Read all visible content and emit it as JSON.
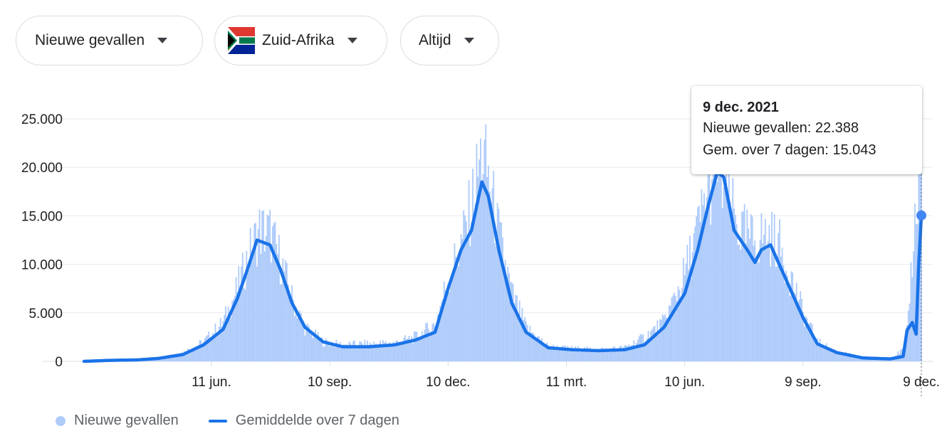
{
  "filters": {
    "metric": {
      "label": "Nieuwe gevallen"
    },
    "country": {
      "label": "Zuid-Afrika",
      "flag_icon": "south-africa-flag-icon"
    },
    "period": {
      "label": "Altijd"
    }
  },
  "tooltip": {
    "date": "9 dec. 2021",
    "cases_line": "Nieuwe gevallen: 22.388",
    "avg_line": "Gem. over 7 dagen: 15.043"
  },
  "legend": {
    "cases": "Nieuwe gevallen",
    "average": "Gemiddelde over 7 dagen"
  },
  "colors": {
    "bars": "#aecbfa",
    "line": "#1a73e8",
    "grid": "#e8eaed",
    "text": "#202124"
  },
  "chart_data": {
    "type": "bar",
    "x_start": "2020-03-05",
    "x_end": "2021-12-09",
    "ylim": [
      0,
      25000
    ],
    "y_ticks": [
      0,
      5000,
      10000,
      15000,
      20000,
      25000
    ],
    "y_tick_labels": [
      "0",
      "5.000",
      "10.000",
      "15.000",
      "20.000",
      "25.000"
    ],
    "x_ticks": [
      {
        "date": "2020-06-11",
        "label": "11 jun."
      },
      {
        "date": "2020-09-10",
        "label": "10 sep."
      },
      {
        "date": "2020-12-10",
        "label": "10 dec."
      },
      {
        "date": "2021-03-11",
        "label": "11 mrt."
      },
      {
        "date": "2021-06-10",
        "label": "10 jun."
      },
      {
        "date": "2021-09-09",
        "label": "9 sep."
      },
      {
        "date": "2021-12-09",
        "label": "9 dec."
      }
    ],
    "series": [
      {
        "name": "Nieuwe gevallen",
        "style": "bar",
        "points": [
          [
            "2020-03-05",
            0
          ],
          [
            "2020-03-25",
            150
          ],
          [
            "2020-04-15",
            150
          ],
          [
            "2020-05-01",
            300
          ],
          [
            "2020-05-20",
            900
          ],
          [
            "2020-06-05",
            2000
          ],
          [
            "2020-06-20",
            4000
          ],
          [
            "2020-07-01",
            7500
          ],
          [
            "2020-07-10",
            11000
          ],
          [
            "2020-07-18",
            13500
          ],
          [
            "2020-07-26",
            13200
          ],
          [
            "2020-08-03",
            10500
          ],
          [
            "2020-08-12",
            6500
          ],
          [
            "2020-08-22",
            3500
          ],
          [
            "2020-09-05",
            2000
          ],
          [
            "2020-09-20",
            1700
          ],
          [
            "2020-10-10",
            1800
          ],
          [
            "2020-10-30",
            1900
          ],
          [
            "2020-11-15",
            2500
          ],
          [
            "2020-11-30",
            3800
          ],
          [
            "2020-12-10",
            8500
          ],
          [
            "2020-12-20",
            12000
          ],
          [
            "2020-12-28",
            16000
          ],
          [
            "2021-01-05",
            21500
          ],
          [
            "2021-01-10",
            19000
          ],
          [
            "2021-01-18",
            13000
          ],
          [
            "2021-01-28",
            7000
          ],
          [
            "2021-02-08",
            3500
          ],
          [
            "2021-02-25",
            1500
          ],
          [
            "2021-03-15",
            1300
          ],
          [
            "2021-04-05",
            1200
          ],
          [
            "2021-04-25",
            1400
          ],
          [
            "2021-05-10",
            2500
          ],
          [
            "2021-05-25",
            4000
          ],
          [
            "2021-06-10",
            9000
          ],
          [
            "2021-06-20",
            13500
          ],
          [
            "2021-06-28",
            17500
          ],
          [
            "2021-07-05",
            20500
          ],
          [
            "2021-07-12",
            17000
          ],
          [
            "2021-07-22",
            13500
          ],
          [
            "2021-08-01",
            12500
          ],
          [
            "2021-08-10",
            13000
          ],
          [
            "2021-08-20",
            12500
          ],
          [
            "2021-08-30",
            9000
          ],
          [
            "2021-09-09",
            5000
          ],
          [
            "2021-09-20",
            2000
          ],
          [
            "2021-10-05",
            1000
          ],
          [
            "2021-10-25",
            400
          ],
          [
            "2021-11-15",
            300
          ],
          [
            "2021-11-25",
            1200
          ],
          [
            "2021-11-28",
            3000
          ],
          [
            "2021-12-02",
            11000
          ],
          [
            "2021-12-09",
            22388
          ]
        ]
      },
      {
        "name": "Gemiddelde over 7 dagen",
        "style": "line",
        "points": [
          [
            "2020-03-05",
            0
          ],
          [
            "2020-03-25",
            100
          ],
          [
            "2020-04-15",
            150
          ],
          [
            "2020-05-01",
            300
          ],
          [
            "2020-05-20",
            700
          ],
          [
            "2020-06-05",
            1700
          ],
          [
            "2020-06-20",
            3300
          ],
          [
            "2020-07-01",
            6500
          ],
          [
            "2020-07-10",
            10000
          ],
          [
            "2020-07-16",
            12500
          ],
          [
            "2020-07-20",
            12300
          ],
          [
            "2020-07-26",
            12000
          ],
          [
            "2020-08-03",
            9500
          ],
          [
            "2020-08-12",
            6000
          ],
          [
            "2020-08-22",
            3500
          ],
          [
            "2020-09-05",
            2000
          ],
          [
            "2020-09-20",
            1500
          ],
          [
            "2020-10-10",
            1500
          ],
          [
            "2020-10-30",
            1700
          ],
          [
            "2020-11-15",
            2200
          ],
          [
            "2020-11-30",
            3000
          ],
          [
            "2020-12-10",
            7500
          ],
          [
            "2020-12-20",
            11500
          ],
          [
            "2020-12-28",
            13500
          ],
          [
            "2021-01-05",
            18500
          ],
          [
            "2021-01-10",
            17000
          ],
          [
            "2021-01-18",
            11500
          ],
          [
            "2021-01-28",
            6000
          ],
          [
            "2021-02-08",
            3000
          ],
          [
            "2021-02-25",
            1400
          ],
          [
            "2021-03-15",
            1200
          ],
          [
            "2021-04-05",
            1100
          ],
          [
            "2021-04-25",
            1200
          ],
          [
            "2021-05-10",
            1700
          ],
          [
            "2021-05-25",
            3500
          ],
          [
            "2021-06-10",
            7000
          ],
          [
            "2021-06-20",
            11500
          ],
          [
            "2021-06-28",
            16000
          ],
          [
            "2021-07-05",
            19500
          ],
          [
            "2021-07-10",
            19000
          ],
          [
            "2021-07-18",
            13500
          ],
          [
            "2021-07-28",
            11500
          ],
          [
            "2021-08-03",
            10200
          ],
          [
            "2021-08-08",
            11500
          ],
          [
            "2021-08-15",
            12000
          ],
          [
            "2021-08-25",
            9000
          ],
          [
            "2021-09-09",
            4500
          ],
          [
            "2021-09-20",
            1800
          ],
          [
            "2021-10-05",
            900
          ],
          [
            "2021-10-25",
            350
          ],
          [
            "2021-11-15",
            250
          ],
          [
            "2021-11-25",
            500
          ],
          [
            "2021-11-28",
            3200
          ],
          [
            "2021-12-02",
            4000
          ],
          [
            "2021-12-05",
            2800
          ],
          [
            "2021-12-07",
            10000
          ],
          [
            "2021-12-09",
            15043
          ]
        ]
      }
    ],
    "highlight": {
      "date": "2021-12-09",
      "value": 15043
    }
  }
}
